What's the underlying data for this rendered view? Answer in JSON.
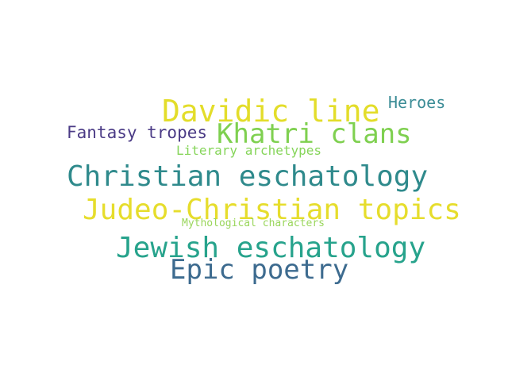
{
  "wordcloud": {
    "words": [
      {
        "id": "w-davidic",
        "text": "Davidic line",
        "color": "#e3dd2a"
      },
      {
        "id": "w-heroes",
        "text": "Heroes",
        "color": "#3b8c96"
      },
      {
        "id": "w-khatri",
        "text": "Khatri clans",
        "color": "#7fd050"
      },
      {
        "id": "w-fantasy",
        "text": "Fantasy tropes",
        "color": "#4b3b86"
      },
      {
        "id": "w-literary",
        "text": "Literary archetypes",
        "color": "#86d55a"
      },
      {
        "id": "w-christian",
        "text": "Christian eschatology",
        "color": "#2f8a8c"
      },
      {
        "id": "w-judeo",
        "text": "Judeo-Christian topics",
        "color": "#e6dd2c"
      },
      {
        "id": "w-mythological",
        "text": "Mythological characters",
        "color": "#9ad65c"
      },
      {
        "id": "w-jewish",
        "text": "Jewish eschatology",
        "color": "#27a38c"
      },
      {
        "id": "w-epic",
        "text": "Epic poetry",
        "color": "#3d6b8f"
      }
    ]
  }
}
